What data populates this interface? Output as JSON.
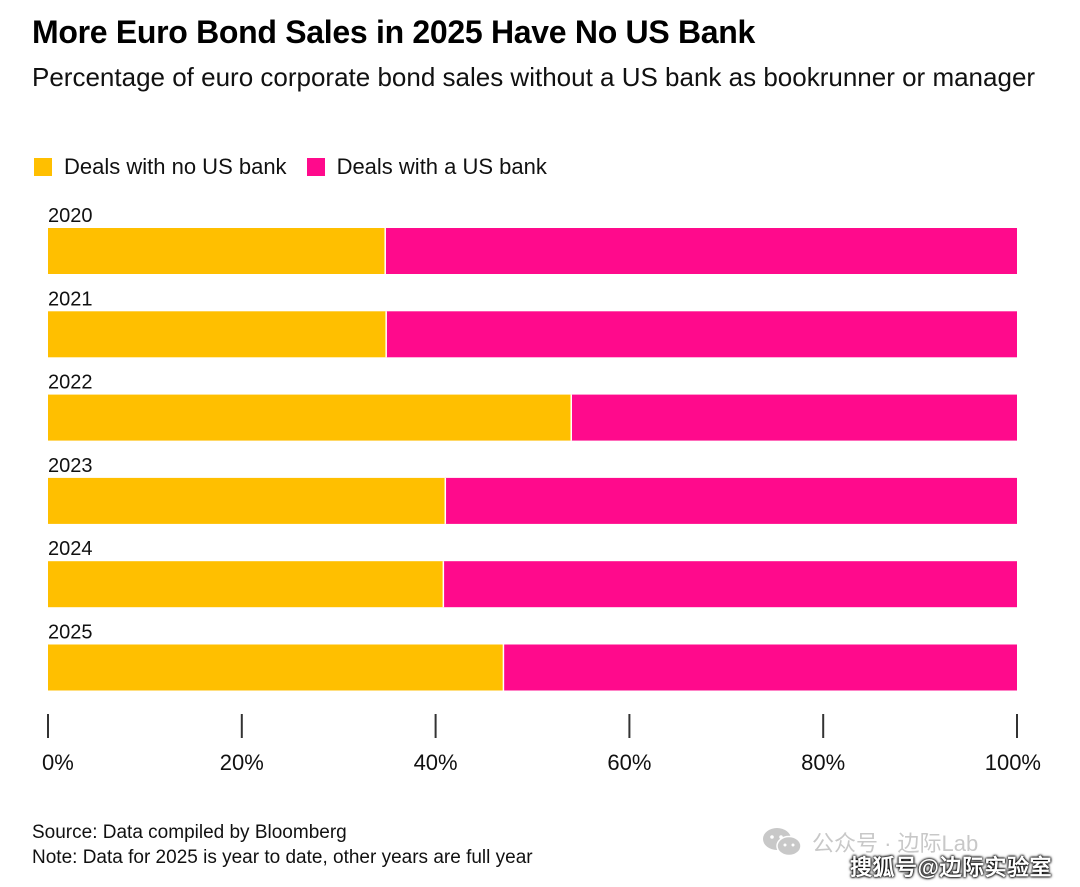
{
  "chart_data": {
    "type": "bar",
    "orientation": "horizontal",
    "stacked": true,
    "title": "More Euro Bond Sales in 2025 Have No US Bank",
    "subtitle": "Percentage of euro corporate bond sales without a US bank as bookrunner or manager",
    "categories": [
      "2020",
      "2021",
      "2022",
      "2023",
      "2024",
      "2025"
    ],
    "series": [
      {
        "name": "Deals with no US bank",
        "color": "#FFBF00",
        "values": [
          34.8,
          34.9,
          54.0,
          41.0,
          40.8,
          47.0
        ]
      },
      {
        "name": "Deals with a US bank",
        "color": "#FF0A8C",
        "values": [
          65.2,
          65.1,
          46.0,
          59.0,
          59.2,
          53.0
        ]
      }
    ],
    "xlim": [
      0,
      100
    ],
    "xticks": [
      "0%",
      "20%",
      "40%",
      "60%",
      "80%",
      "100%"
    ],
    "xtick_values": [
      0,
      20,
      40,
      60,
      80,
      100
    ],
    "grid": false,
    "legend_position": "top-left"
  },
  "footer": {
    "source": "Source: Data compiled by Bloomberg",
    "note": "Note: Data for 2025 is year to date, other years are full year"
  },
  "watermark": {
    "line1": "公众号 · 边际Lab",
    "line2": "搜狐号@边际实验室",
    "bubble_icon": "wechat-icon"
  }
}
